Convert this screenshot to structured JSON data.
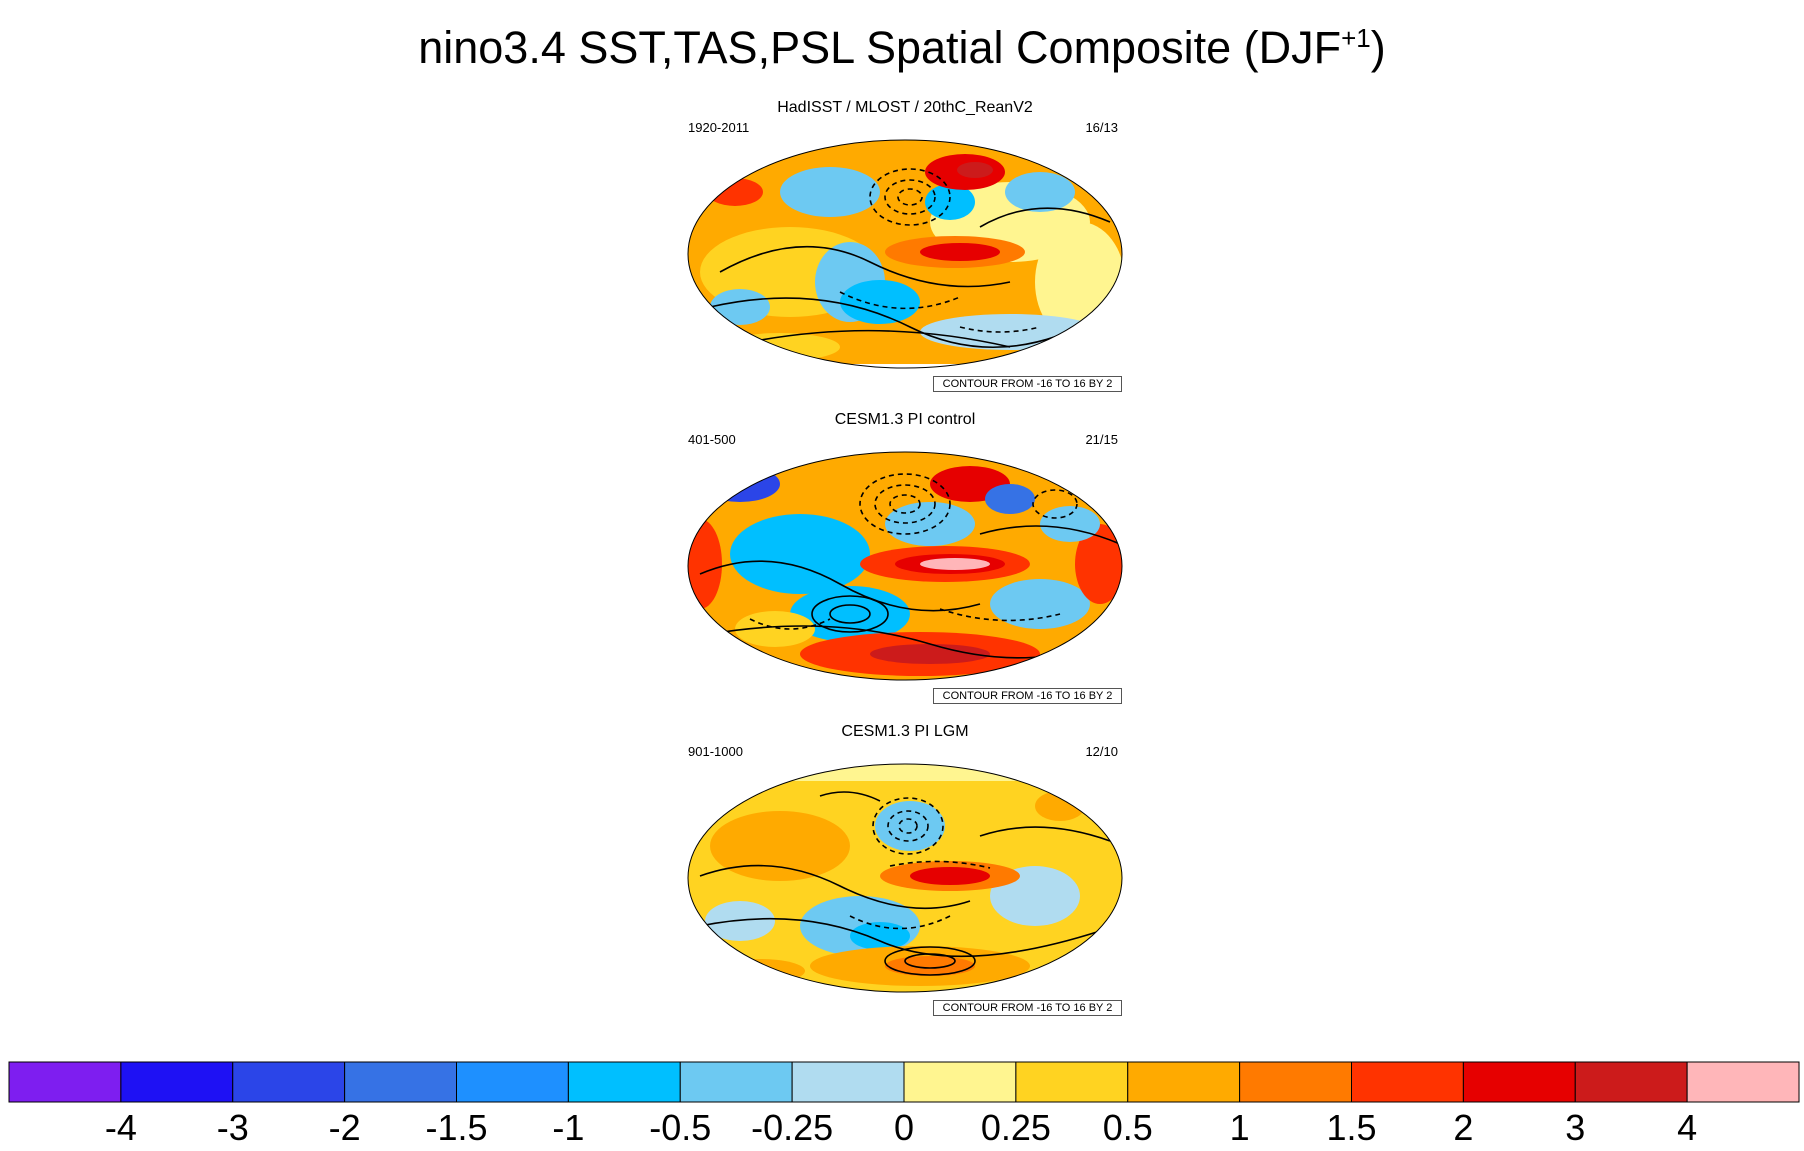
{
  "title": {
    "main": "nino3.4 SST,TAS,PSL Spatial Composite (DJF",
    "superscript": "+1",
    "closing": ")"
  },
  "panels": [
    {
      "title": "HadISST / MLOST / 20thC_ReanV2",
      "period": "1920-2011",
      "count": "16/13",
      "contour_info": "CONTOUR FROM -16 TO 16 BY 2"
    },
    {
      "title": "CESM1.3 PI control",
      "period": "401-500",
      "count": "21/15",
      "contour_info": "CONTOUR FROM -16 TO 16 BY 2"
    },
    {
      "title": "CESM1.3 PI LGM",
      "period": "901-1000",
      "count": "12/10",
      "contour_info": "CONTOUR FROM -16 TO 16 BY 2"
    }
  ],
  "chart_data": {
    "type": "heatmap",
    "title": "nino3.4 SST,TAS,PSL Spatial Composite (DJF+1)",
    "projection": "Robinson global map",
    "contours": "PSL, from -16 to 16 by 2 (dashed = negative)",
    "colorbar": {
      "levels": [
        "-4",
        "-3",
        "-2",
        "-1.5",
        "-1",
        "-0.5",
        "-0.25",
        "0",
        "0.25",
        "0.5",
        "1",
        "1.5",
        "2",
        "3",
        "4"
      ],
      "colors": [
        "#7e1ef0",
        "#1e11f4",
        "#2b45e8",
        "#3672e5",
        "#1e90ff",
        "#00bfff",
        "#6dc9f2",
        "#b0dcf0",
        "#fff590",
        "#ffd321",
        "#ffaa00",
        "#ff7a00",
        "#ff3300",
        "#e60000",
        "#cc1b1b",
        "#ffb6b9"
      ]
    }
  }
}
